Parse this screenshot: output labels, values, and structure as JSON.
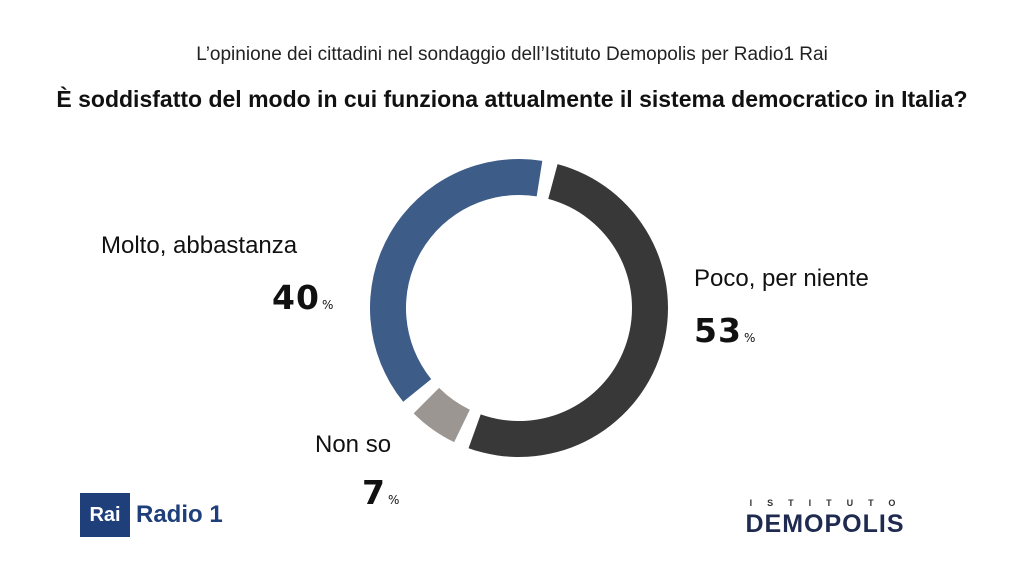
{
  "header": {
    "subtitle": "L’opinione dei cittadini nel sondaggio dell’Istituto Demopolis per Radio1 Rai",
    "question": "È soddisfatto del modo in cui funziona attualmente il sistema democratico in Italia?"
  },
  "chart_data": {
    "type": "pie",
    "title": "È soddisfatto del modo in cui funziona attualmente il sistema democratico in Italia?",
    "categories": [
      "Poco, per niente",
      "Non so",
      "Molto, abbastanza"
    ],
    "values": [
      53,
      7,
      40
    ],
    "unit": "%",
    "colors": [
      "#383838",
      "#9b9692",
      "#3e5c88"
    ],
    "style": "donut"
  },
  "labels": {
    "negative": {
      "name": "Poco, per niente",
      "value": "53",
      "unit": "%"
    },
    "unknown": {
      "name": "Non so",
      "value": "7",
      "unit": "%"
    },
    "positive": {
      "name": "Molto, abbastanza",
      "value": "40",
      "unit": "%"
    }
  },
  "logos": {
    "rai_box": "Rai",
    "rai_radio": "Radio 1",
    "demopolis_small": "ISTITUTO",
    "demopolis_big": "DEMOPOLIS"
  }
}
